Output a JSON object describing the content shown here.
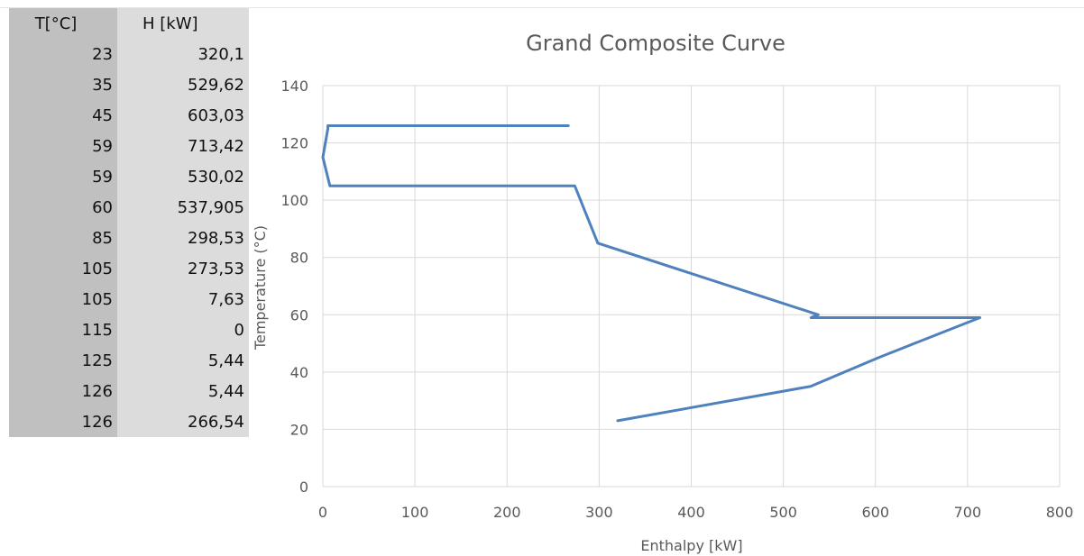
{
  "table": {
    "headers": {
      "t": "T[°C]",
      "h": "H [kW]"
    },
    "rows": [
      {
        "t": "23",
        "h": "320,1"
      },
      {
        "t": "35",
        "h": "529,62"
      },
      {
        "t": "45",
        "h": "603,03"
      },
      {
        "t": "59",
        "h": "713,42"
      },
      {
        "t": "59",
        "h": "530,02"
      },
      {
        "t": "60",
        "h": "537,905"
      },
      {
        "t": "85",
        "h": "298,53"
      },
      {
        "t": "105",
        "h": "273,53"
      },
      {
        "t": "105",
        "h": "7,63"
      },
      {
        "t": "115",
        "h": "0"
      },
      {
        "t": "125",
        "h": "5,44"
      },
      {
        "t": "126",
        "h": "5,44"
      },
      {
        "t": "126",
        "h": "266,54"
      }
    ]
  },
  "chart_data": {
    "type": "line",
    "title": "Grand Composite Curve",
    "xlabel": "Enthalpy [kW]",
    "ylabel": "Temperature (°C)",
    "xlim": [
      0,
      800
    ],
    "ylim": [
      0,
      140
    ],
    "xticks": [
      0,
      100,
      200,
      300,
      400,
      500,
      600,
      700,
      800
    ],
    "yticks": [
      0,
      20,
      40,
      60,
      80,
      100,
      120,
      140
    ],
    "grid": true,
    "legend": "none",
    "series": [
      {
        "color": "#4f81bd",
        "points": [
          [
            320.1,
            23
          ],
          [
            529.62,
            35
          ],
          [
            603.03,
            45
          ],
          [
            713.42,
            59
          ],
          [
            530.02,
            59
          ],
          [
            537.905,
            60
          ],
          [
            298.53,
            85
          ],
          [
            273.53,
            105
          ],
          [
            7.63,
            105
          ],
          [
            0,
            115
          ],
          [
            5.44,
            125
          ],
          [
            5.44,
            126
          ],
          [
            266.54,
            126
          ]
        ]
      }
    ]
  }
}
